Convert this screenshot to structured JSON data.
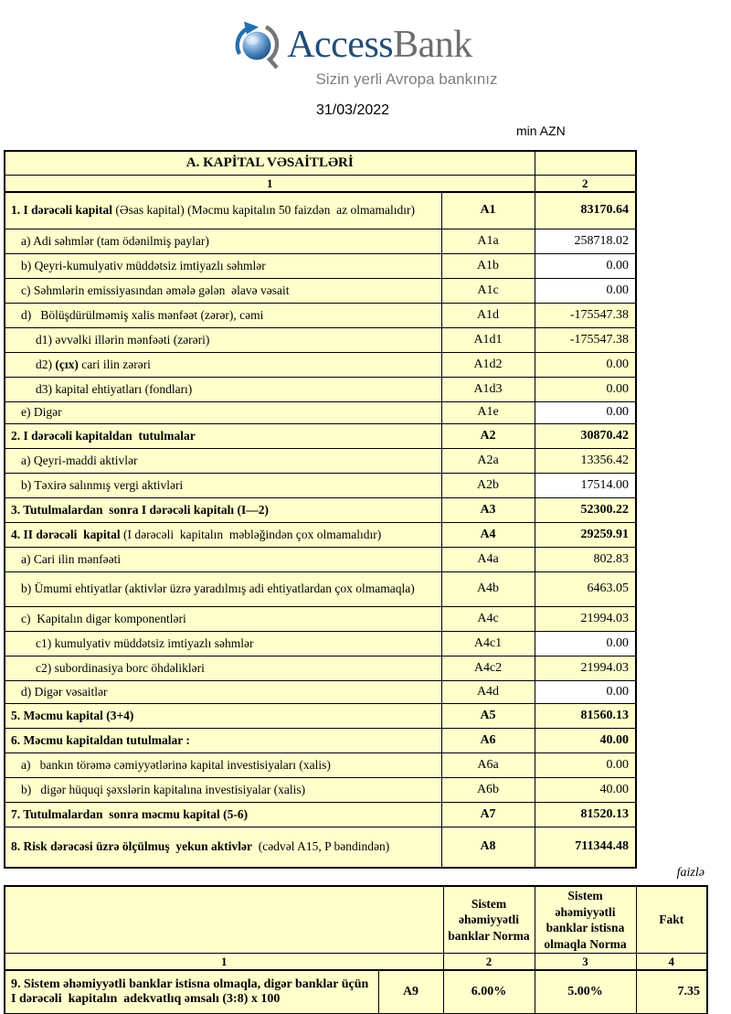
{
  "header": {
    "logo": {
      "brand_access": "Access",
      "brand_bank": "Bank",
      "tagline": "Sizin yerli Avropa bankınız"
    },
    "date": "31/03/2022",
    "unit_label": "min AZN"
  },
  "capital_table": {
    "title": "A. KAPİTAL VƏSAİTLƏRİ",
    "col1_header": "1",
    "col2_header": "2",
    "rows": [
      {
        "segs": [
          [
            "1. I dərəcəli kapital",
            true
          ],
          [
            " (Əsas kapital) (Məcmu kapitalın 50 faizdən  az olmamalıdır)",
            false
          ]
        ],
        "code": "A1",
        "value": "83170.64",
        "bold": true,
        "indent": 0,
        "white": false,
        "h": 40
      },
      {
        "segs": [
          [
            "a) Adi səhmlər (tam ödənilmiş paylar)",
            false
          ]
        ],
        "code": "A1a",
        "value": "258718.02",
        "bold": false,
        "indent": 1,
        "white": true,
        "h": 27
      },
      {
        "segs": [
          [
            "b) Qeyri-kumulyativ müddətsiz imtiyazlı səhmlər",
            false
          ]
        ],
        "code": "A1b",
        "value": "0.00",
        "bold": false,
        "indent": 1,
        "white": true,
        "h": 27
      },
      {
        "segs": [
          [
            "c) Səhmlərin emissiyasından əmələ gələn  əlavə vəsait",
            false
          ]
        ],
        "code": "A1c",
        "value": "0.00",
        "bold": false,
        "indent": 1,
        "white": true,
        "h": 27
      },
      {
        "segs": [
          [
            "d)   Bölüşdürülməmiş xalis mənfəət (zərər), cəmi",
            false
          ]
        ],
        "code": "A1d",
        "value": "-175547.38",
        "bold": false,
        "indent": 1,
        "white": false,
        "h": 27
      },
      {
        "segs": [
          [
            "d1) əvvəlki illərin mənfəəti (zərəri)",
            false
          ]
        ],
        "code": "A1d1",
        "value": "-175547.38",
        "bold": false,
        "indent": 2,
        "white": false,
        "h": 27
      },
      {
        "segs": [
          [
            "d2) ",
            false
          ],
          [
            "(çıx)",
            true
          ],
          [
            " cari ilin zərəri",
            false
          ]
        ],
        "code": "A1d2",
        "value": "0.00",
        "bold": false,
        "indent": 2,
        "white": false,
        "h": 27
      },
      {
        "segs": [
          [
            "d3) kapital ehtiyatları (fondları)",
            false
          ]
        ],
        "code": "A1d3",
        "value": "0.00",
        "bold": false,
        "indent": 2,
        "white": false,
        "h": 27
      },
      {
        "segs": [
          [
            "e) Digər",
            false
          ]
        ],
        "code": "A1e",
        "value": "0.00",
        "bold": false,
        "indent": 1,
        "white": true,
        "h": 24
      },
      {
        "segs": [
          [
            "2. I dərəcəli kapitaldan  tutulmalar",
            true
          ]
        ],
        "code": "A2",
        "value": "30870.42",
        "bold": true,
        "indent": 0,
        "white": false,
        "h": 27
      },
      {
        "segs": [
          [
            "a) Qeyri-maddi aktivlər",
            false
          ]
        ],
        "code": "A2a",
        "value": "13356.42",
        "bold": false,
        "indent": 1,
        "white": false,
        "h": 27
      },
      {
        "segs": [
          [
            "b) Təxirə salınmış vergi aktivləri",
            false
          ]
        ],
        "code": "A2b",
        "value": "17514.00",
        "bold": false,
        "indent": 1,
        "white": true,
        "h": 27
      },
      {
        "segs": [
          [
            "3. Tutulmalardan  sonra I dərəcəli kapitalı (I—2)",
            true
          ]
        ],
        "code": "A3",
        "value": "52300.22",
        "bold": true,
        "indent": 0,
        "white": false,
        "h": 27
      },
      {
        "segs": [
          [
            "4. II dərəcəli  kapital",
            true
          ],
          [
            " (I dərəcəli  kapitalın  məbləğindən çox olmamalıdır)",
            false
          ]
        ],
        "code": "A4",
        "value": "29259.91",
        "bold": true,
        "indent": 0,
        "white": false,
        "h": 27
      },
      {
        "segs": [
          [
            "a) Cari ilin mənfəəti",
            false
          ]
        ],
        "code": "A4a",
        "value": "802.83",
        "bold": false,
        "indent": 1,
        "white": false,
        "h": 27
      },
      {
        "segs": [
          [
            "b) Ümumi ehtiyatlar (aktivlər üzrə yaradılmış adi ehtiyatlardan çox olmamaqla)",
            false
          ]
        ],
        "code": "A4b",
        "value": "6463.05",
        "bold": false,
        "indent": 1,
        "white": false,
        "h": 38
      },
      {
        "segs": [
          [
            "c)  Kapitalın digər komponentləri",
            false
          ]
        ],
        "code": "A4c",
        "value": "21994.03",
        "bold": false,
        "indent": 1,
        "white": false,
        "h": 27
      },
      {
        "segs": [
          [
            "c1) kumulyativ müddətsiz imtiyazlı səhmlər",
            false
          ]
        ],
        "code": "A4c1",
        "value": "0.00",
        "bold": false,
        "indent": 2,
        "white": true,
        "h": 27
      },
      {
        "segs": [
          [
            "c2) subordinasiya borc öhdəlikləri",
            false
          ]
        ],
        "code": "A4c2",
        "value": "21994.03",
        "bold": false,
        "indent": 2,
        "white": false,
        "h": 27
      },
      {
        "segs": [
          [
            "d) Digər vəsaitlər",
            false
          ]
        ],
        "code": "A4d",
        "value": "0.00",
        "bold": false,
        "indent": 1,
        "white": true,
        "h": 25
      },
      {
        "segs": [
          [
            "5. Məcmu kapital (3+4)",
            true
          ]
        ],
        "code": "A5",
        "value": "81560.13",
        "bold": true,
        "indent": 0,
        "white": false,
        "h": 27
      },
      {
        "segs": [
          [
            "6. Məcmu kapitaldan tutulmalar :",
            true
          ]
        ],
        "code": "A6",
        "value": "40.00",
        "bold": true,
        "indent": 0,
        "white": false,
        "h": 27
      },
      {
        "segs": [
          [
            "a)   bankın törəmə cəmiyyətlərinə kapital investisiyaları (xalis)",
            false
          ]
        ],
        "code": "A6a",
        "value": "0.00",
        "bold": false,
        "indent": 1,
        "white": false,
        "h": 27
      },
      {
        "segs": [
          [
            "b)   digər hüquqi şəxslərin kapitalına investisiyalar (xalis)",
            false
          ]
        ],
        "code": "A6b",
        "value": "40.00",
        "bold": false,
        "indent": 1,
        "white": false,
        "h": 27
      },
      {
        "segs": [
          [
            "7. Tutulmalardan  sonra məcmu kapital (5-6)",
            true
          ]
        ],
        "code": "A7",
        "value": "81520.13",
        "bold": true,
        "indent": 0,
        "white": false,
        "h": 27
      },
      {
        "segs": [
          [
            "8. Risk dərəcəsi üzrə ölçülmuş  yekun aktivlər",
            true
          ],
          [
            "  (cədvəl A15, P bəndindən)",
            false
          ]
        ],
        "code": "A8",
        "value": "711344.48",
        "bold": true,
        "indent": 0,
        "white": false,
        "h": 45
      }
    ]
  },
  "ratio_table": {
    "note": "faizlə",
    "headers": {
      "norm_systemic": "Sistem əhəmiyyətli banklar Norma",
      "norm_non_systemic": "Sistem əhəmiyyətli banklar istisna olmaqla Norma",
      "fact": "Fakt"
    },
    "col_numbers": [
      "1",
      "2",
      "3",
      "4"
    ],
    "row": {
      "label": "9. Sistem əhəmiyyətli banklar istisna olmaqla, digər banklar üçün I dərəcəli  kapitalın  adekvatlıq əmsalı (3:8) x 100",
      "code": "A9",
      "norm_systemic": "6.00%",
      "norm_non_systemic": "5.00%",
      "fact": "7.35"
    }
  }
}
